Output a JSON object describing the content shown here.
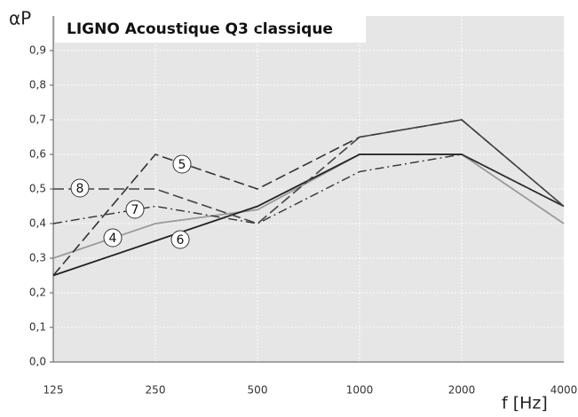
{
  "chart_data": {
    "type": "line",
    "title": "LIGNO Acoustique Q3 classique",
    "ylabel": "αP",
    "xlabel": "f [Hz]",
    "categories": [
      "125",
      "250",
      "500",
      "1000",
      "2000",
      "4000"
    ],
    "ylim": [
      0,
      1.0
    ],
    "yticks": [
      {
        "value": 0,
        "label": "0,0"
      },
      {
        "value": 0.1,
        "label": "0,1"
      },
      {
        "value": 0.2,
        "label": "0,2"
      },
      {
        "value": 0.3,
        "label": "0,3"
      },
      {
        "value": 0.4,
        "label": "0,4"
      },
      {
        "value": 0.5,
        "label": "0,5"
      },
      {
        "value": 0.6,
        "label": "0,6"
      },
      {
        "value": 0.7,
        "label": "0,7"
      },
      {
        "value": 0.8,
        "label": "0,8"
      },
      {
        "value": 0.9,
        "label": "0,9"
      }
    ],
    "grid": true,
    "series": [
      {
        "name": "4",
        "color": "#9a9a9a",
        "style": "solid",
        "values": [
          0.3,
          0.4,
          0.44,
          0.6,
          0.6,
          0.4
        ]
      },
      {
        "name": "5",
        "color": "#333333",
        "style": "dashed",
        "values": [
          0.25,
          0.6,
          0.5,
          0.65,
          0.7,
          0.45
        ]
      },
      {
        "name": "6",
        "color": "#222222",
        "style": "solid",
        "values": [
          0.25,
          0.35,
          0.45,
          0.6,
          0.6,
          0.45
        ]
      },
      {
        "name": "7",
        "color": "#333333",
        "style": "dashdot",
        "values": [
          0.4,
          0.45,
          0.4,
          0.55,
          0.6,
          0.45
        ]
      },
      {
        "name": "8",
        "color": "#444444",
        "style": "dashed",
        "values": [
          0.5,
          0.5,
          0.4,
          0.65,
          0.7,
          0.45
        ]
      }
    ]
  }
}
